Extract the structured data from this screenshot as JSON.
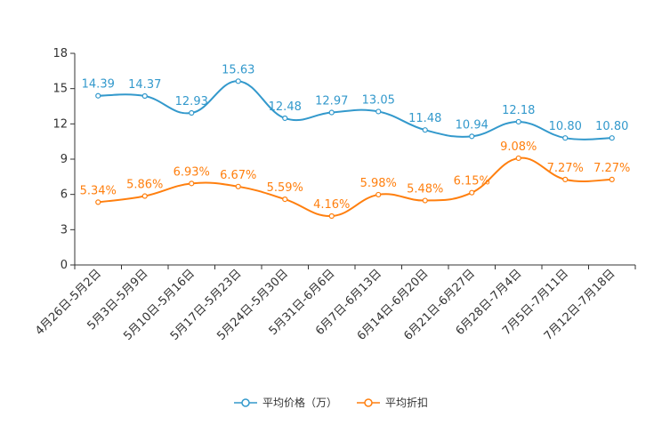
{
  "chart_data": {
    "type": "line",
    "categories": [
      "4月26日-5月2日",
      "5月3日-5月9日",
      "5月10日-5月16日",
      "5月17日-5月23日",
      "5月24日-5月30日",
      "5月31日-6月6日",
      "6月7日-6月13日",
      "6月14日-6月20日",
      "6月21日-6月27日",
      "6月28日-7月4日",
      "7月5日-7月11日",
      "7月12日-7月18日"
    ],
    "series": [
      {
        "name": "平均价格（万）",
        "color": "#3399cc",
        "values": [
          14.39,
          14.37,
          12.93,
          15.63,
          12.48,
          12.97,
          13.05,
          11.48,
          10.94,
          12.18,
          10.8,
          10.8
        ],
        "labels": [
          "14.39",
          "14.37",
          "12.93",
          "15.63",
          "12.48",
          "12.97",
          "13.05",
          "11.48",
          "10.94",
          "12.18",
          "10.80",
          "10.80"
        ]
      },
      {
        "name": "平均折扣",
        "color": "#ff7f0e",
        "values": [
          5.34,
          5.86,
          6.93,
          6.67,
          5.59,
          4.16,
          5.98,
          5.48,
          6.15,
          9.08,
          7.27,
          7.27
        ],
        "labels": [
          "5.34%",
          "5.86%",
          "6.93%",
          "6.67%",
          "5.59%",
          "4.16%",
          "5.98%",
          "5.48%",
          "6.15%",
          "9.08%",
          "7.27%",
          "7.27%"
        ]
      }
    ],
    "ylim": [
      0,
      18
    ],
    "yticks": [
      "0",
      "3",
      "6",
      "9",
      "12",
      "15",
      "18"
    ],
    "title": "",
    "xlabel": "",
    "ylabel": "",
    "legend_position": "bottom-center"
  }
}
